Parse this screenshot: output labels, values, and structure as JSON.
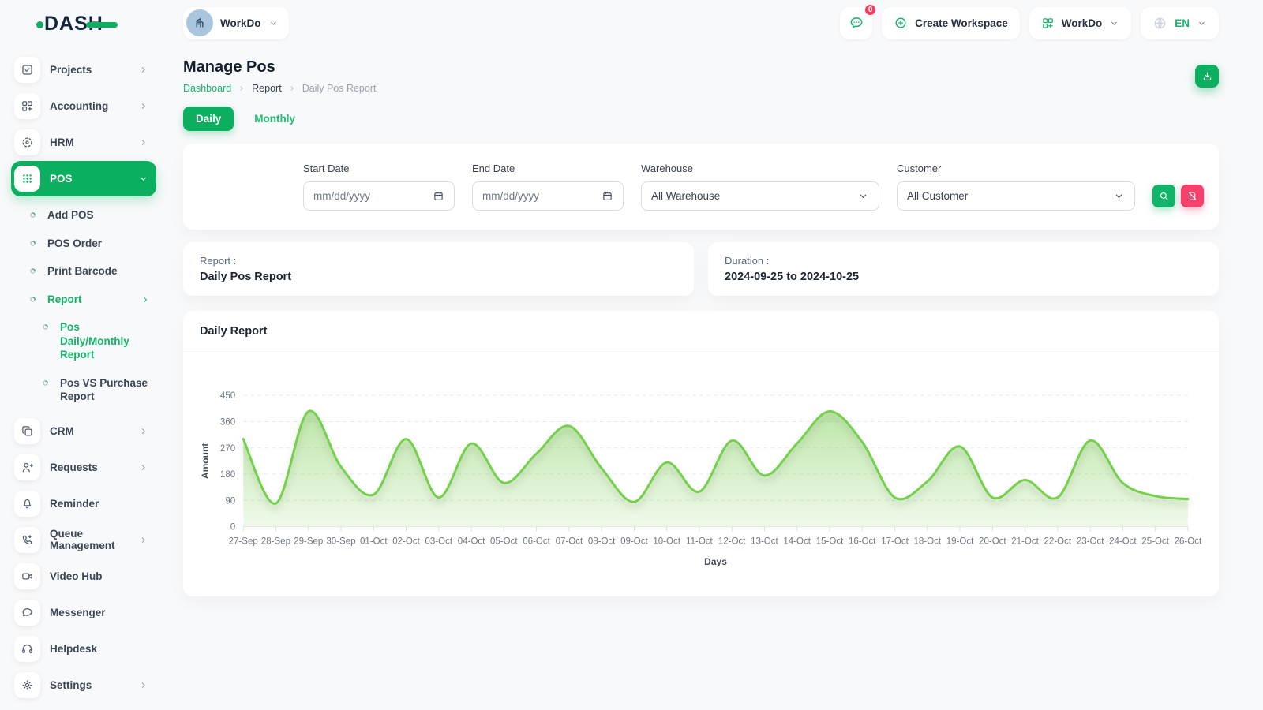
{
  "brand": {
    "name": "DASH"
  },
  "header": {
    "workspace": {
      "label": "WorkDo",
      "icon": "building-icon"
    },
    "messages_badge": "0",
    "create_workspace_label": "Create Workspace",
    "account": {
      "label": "WorkDo",
      "icon": "grid-plus-icon"
    },
    "language": {
      "label": "EN",
      "icon": "globe-icon"
    }
  },
  "page": {
    "title": "Manage Pos",
    "breadcrumb": [
      "Dashboard",
      "Report",
      "Daily Pos Report"
    ],
    "tabs": [
      {
        "label": "Daily",
        "active": true
      },
      {
        "label": "Monthly",
        "active": false
      }
    ]
  },
  "filters": {
    "start_date": {
      "label": "Start Date",
      "placeholder": "mm/dd/yyyy"
    },
    "end_date": {
      "label": "End Date",
      "placeholder": "mm/dd/yyyy"
    },
    "warehouse": {
      "label": "Warehouse",
      "value": "All Warehouse"
    },
    "customer": {
      "label": "Customer",
      "value": "All Customer"
    }
  },
  "summary": {
    "report_label": "Report :",
    "report_value": "Daily Pos Report",
    "duration_label": "Duration :",
    "duration_value": "2024-09-25 to 2024-10-25"
  },
  "sidebar": {
    "items": [
      {
        "icon": "checkbox-icon",
        "label": "Projects",
        "chevron": "right"
      },
      {
        "icon": "grid-plus-icon",
        "label": "Accounting",
        "chevron": "right"
      },
      {
        "icon": "target-icon",
        "label": "HRM",
        "chevron": "right"
      },
      {
        "icon": "dots-grid-icon",
        "label": "POS",
        "chevron": "down",
        "active": true,
        "children": [
          {
            "label": "Add POS"
          },
          {
            "label": "POS Order"
          },
          {
            "label": "Print Barcode"
          },
          {
            "label": "Report",
            "active": true,
            "chevron": "right",
            "children": [
              {
                "label": "Pos Daily/Monthly Report",
                "active": true
              },
              {
                "label": "Pos VS Purchase Report"
              }
            ]
          }
        ]
      },
      {
        "icon": "copy-icon",
        "label": "CRM",
        "chevron": "right"
      },
      {
        "icon": "user-plus-icon",
        "label": "Requests",
        "chevron": "right"
      },
      {
        "icon": "bell-icon",
        "label": "Reminder"
      },
      {
        "icon": "phone-icon",
        "label": "Queue Management",
        "chevron": "right"
      },
      {
        "icon": "video-icon",
        "label": "Video Hub"
      },
      {
        "icon": "chat-icon",
        "label": "Messenger"
      },
      {
        "icon": "headset-icon",
        "label": "Helpdesk"
      },
      {
        "icon": "gear-icon",
        "label": "Settings",
        "chevron": "right"
      }
    ]
  },
  "chart_data": {
    "type": "area",
    "title": "Daily Report",
    "xlabel": "Days",
    "ylabel": "Amount",
    "ylim": [
      0,
      450
    ],
    "yticks": [
      0,
      90,
      180,
      270,
      360,
      450
    ],
    "grid": true,
    "legend": "none",
    "line_color": "#74d14c",
    "categories": [
      "27-Sep",
      "28-Sep",
      "29-Sep",
      "30-Sep",
      "01-Oct",
      "02-Oct",
      "03-Oct",
      "04-Oct",
      "05-Oct",
      "06-Oct",
      "07-Oct",
      "08-Oct",
      "09-Oct",
      "10-Oct",
      "11-Oct",
      "12-Oct",
      "13-Oct",
      "14-Oct",
      "15-Oct",
      "16-Oct",
      "17-Oct",
      "18-Oct",
      "19-Oct",
      "20-Oct",
      "21-Oct",
      "22-Oct",
      "23-Oct",
      "24-Oct",
      "25-Oct",
      "26-Oct"
    ],
    "series": [
      {
        "name": "Amount",
        "values": [
          300,
          80,
          395,
          205,
          110,
          300,
          100,
          285,
          150,
          250,
          345,
          200,
          85,
          220,
          120,
          295,
          175,
          285,
          395,
          290,
          100,
          155,
          275,
          100,
          160,
          100,
          295,
          150,
          105,
          95
        ]
      }
    ]
  },
  "colors": {
    "primary_green": "#0caf60",
    "link_green": "#16b56b",
    "chart_line": "#74d14c",
    "reset_red": "#f8406c",
    "badge_red": "#fd3a5c"
  }
}
